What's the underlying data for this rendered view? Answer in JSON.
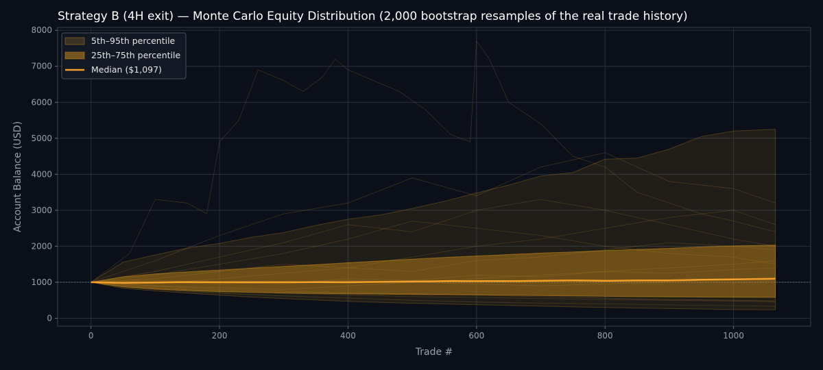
{
  "chart_data": {
    "type": "area",
    "title": "Strategy B (4H exit) — Monte Carlo Equity Distribution (2,000 bootstrap resamples of the real trade history)",
    "xlabel": "Trade #",
    "ylabel": "Account Balance (USD)",
    "xlim": [
      -52,
      1120
    ],
    "ylim": [
      -220,
      8080
    ],
    "x_ticks": [
      0,
      200,
      400,
      600,
      800,
      1000
    ],
    "y_ticks": [
      0,
      1000,
      2000,
      3000,
      4000,
      5000,
      6000,
      7000,
      8000
    ],
    "grid": true,
    "legend_position": "top-left",
    "baseline": 1000,
    "colors": {
      "band_outer": "#b8821e",
      "band_inner": "#c8891a",
      "median": "#f5a027",
      "paths": "#c08a2a",
      "grid": "#273040",
      "baseline": "#8a8f9a"
    },
    "legend": [
      {
        "label": "5th–95th percentile",
        "kind": "band_outer"
      },
      {
        "label": "25th–75th percentile",
        "kind": "band_inner"
      },
      {
        "label": "Median ($1,097)",
        "kind": "median"
      }
    ],
    "series": [
      {
        "name": "5th–95th percentile",
        "x": [
          0,
          50,
          100,
          150,
          200,
          250,
          300,
          350,
          400,
          450,
          500,
          550,
          600,
          650,
          700,
          750,
          800,
          850,
          900,
          950,
          1000,
          1065
        ],
        "lower": [
          1000,
          830,
          760,
          700,
          640,
          590,
          545,
          505,
          470,
          440,
          415,
          395,
          375,
          355,
          335,
          315,
          298,
          282,
          268,
          255,
          243,
          235
        ],
        "upper": [
          1000,
          1560,
          1760,
          1950,
          2080,
          2250,
          2380,
          2580,
          2750,
          2870,
          3050,
          3250,
          3480,
          3700,
          3950,
          4050,
          4420,
          4450,
          4700,
          5050,
          5200,
          5250
        ]
      },
      {
        "name": "25th–75th percentile",
        "x": [
          0,
          50,
          100,
          150,
          200,
          250,
          300,
          350,
          400,
          450,
          500,
          550,
          600,
          650,
          700,
          750,
          800,
          850,
          900,
          950,
          1000,
          1065
        ],
        "lower": [
          1000,
          870,
          810,
          770,
          740,
          720,
          700,
          690,
          680,
          670,
          660,
          655,
          650,
          640,
          630,
          620,
          610,
          600,
          595,
          590,
          585,
          580
        ],
        "upper": [
          1000,
          1150,
          1230,
          1290,
          1340,
          1390,
          1440,
          1490,
          1540,
          1590,
          1640,
          1690,
          1730,
          1770,
          1810,
          1840,
          1880,
          1910,
          1940,
          1980,
          2010,
          2030
        ]
      },
      {
        "name": "Median ($1,097)",
        "x": [
          0,
          50,
          100,
          150,
          200,
          250,
          300,
          350,
          400,
          450,
          500,
          550,
          600,
          650,
          700,
          750,
          800,
          850,
          900,
          950,
          1000,
          1065
        ],
        "values": [
          1000,
          985,
          995,
          1005,
          1000,
          1000,
          1000,
          1005,
          1000,
          1010,
          1020,
          1030,
          1030,
          1030,
          1040,
          1050,
          1040,
          1050,
          1050,
          1070,
          1080,
          1097
        ]
      }
    ],
    "sample_paths": [
      {
        "x": [
          0,
          60,
          100,
          150,
          180,
          200,
          230,
          260,
          300,
          330,
          360,
          380,
          400,
          440,
          480,
          520,
          560,
          590,
          600,
          620,
          650,
          700,
          750,
          800,
          850,
          900,
          950,
          1000,
          1065
        ],
        "values": [
          1000,
          1800,
          3300,
          3200,
          2900,
          4900,
          5500,
          6900,
          6600,
          6300,
          6700,
          7200,
          6900,
          6600,
          6300,
          5800,
          5100,
          4900,
          7700,
          7200,
          6000,
          5400,
          4500,
          4200,
          3500,
          3200,
          2900,
          2700,
          2400
        ]
      },
      {
        "x": [
          0,
          100,
          200,
          300,
          400,
          500,
          600,
          700,
          800,
          900,
          1000,
          1065
        ],
        "values": [
          1000,
          1600,
          2300,
          2900,
          3200,
          3900,
          3400,
          4200,
          4600,
          3800,
          3600,
          3200
        ]
      },
      {
        "x": [
          0,
          100,
          200,
          300,
          400,
          500,
          600,
          700,
          800,
          900,
          1000,
          1065
        ],
        "values": [
          1000,
          1300,
          1700,
          2100,
          2600,
          2400,
          3000,
          3300,
          3000,
          2600,
          2200,
          2000
        ]
      },
      {
        "x": [
          0,
          100,
          200,
          300,
          400,
          500,
          600,
          700,
          800,
          900,
          1000,
          1065
        ],
        "values": [
          1000,
          1200,
          1500,
          1800,
          2200,
          2700,
          2500,
          2300,
          2000,
          1800,
          1700,
          1500
        ]
      },
      {
        "x": [
          0,
          100,
          200,
          300,
          400,
          500,
          600,
          700,
          800,
          900,
          1000,
          1065
        ],
        "values": [
          1000,
          1100,
          1300,
          1500,
          1400,
          1700,
          2000,
          2200,
          2500,
          2800,
          3000,
          2600
        ]
      },
      {
        "x": [
          0,
          100,
          200,
          300,
          400,
          500,
          600,
          700,
          800,
          900,
          1000,
          1065
        ],
        "values": [
          1000,
          950,
          1100,
          1250,
          1400,
          1300,
          1600,
          1700,
          1900,
          2100,
          2000,
          1900
        ]
      },
      {
        "x": [
          0,
          100,
          200,
          300,
          400,
          500,
          600,
          700,
          800,
          900,
          1000,
          1065
        ],
        "values": [
          1000,
          900,
          850,
          800,
          900,
          1000,
          1100,
          1200,
          1300,
          1400,
          1500,
          1600
        ]
      },
      {
        "x": [
          0,
          100,
          200,
          300,
          400,
          500,
          600,
          700,
          800,
          900,
          1000,
          1065
        ],
        "values": [
          1000,
          1050,
          1000,
          950,
          1100,
          1050,
          1200,
          1150,
          1300,
          1250,
          1350,
          1400
        ]
      },
      {
        "x": [
          0,
          100,
          200,
          300,
          400,
          500,
          600,
          700,
          800,
          900,
          1000,
          1065
        ],
        "values": [
          1000,
          850,
          750,
          700,
          650,
          600,
          580,
          550,
          520,
          500,
          480,
          460
        ]
      },
      {
        "x": [
          0,
          100,
          200,
          300,
          400,
          500,
          600,
          700,
          800,
          900,
          1000,
          1065
        ],
        "values": [
          1000,
          800,
          700,
          620,
          560,
          500,
          450,
          420,
          400,
          370,
          350,
          330
        ]
      },
      {
        "x": [
          0,
          100,
          200,
          300,
          400,
          500,
          600,
          700,
          800,
          900,
          1000,
          1065
        ],
        "values": [
          1000,
          900,
          800,
          750,
          700,
          680,
          640,
          600,
          560,
          520,
          500,
          480
        ]
      },
      {
        "x": [
          0,
          100,
          200,
          300,
          400,
          500,
          600,
          700,
          800,
          900,
          1000,
          1065
        ],
        "values": [
          1000,
          1000,
          950,
          1000,
          1050,
          1000,
          950,
          900,
          950,
          1000,
          1100,
          1050
        ]
      }
    ]
  }
}
